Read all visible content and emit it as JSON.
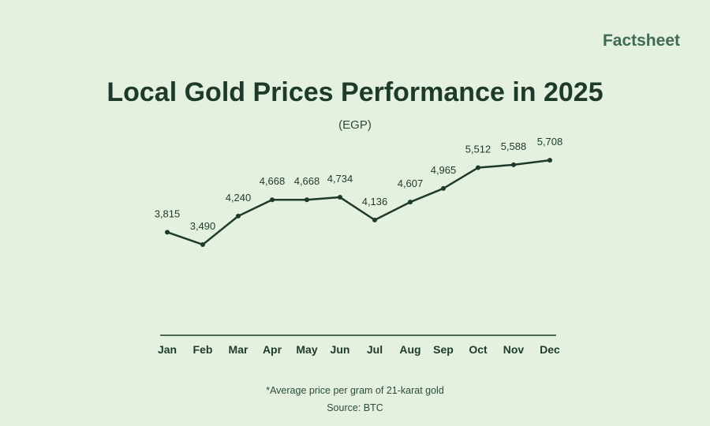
{
  "brand": "Factsheet",
  "chart_data": {
    "type": "line",
    "title": "Local Gold Prices Performance in 2025",
    "subtitle": "(EGP)",
    "categories": [
      "Jan",
      "Feb",
      "Mar",
      "Apr",
      "May",
      "Jun",
      "Jul",
      "Aug",
      "Sep",
      "Oct",
      "Nov",
      "Dec"
    ],
    "values": [
      3815,
      3490,
      4240,
      4668,
      4668,
      4734,
      4136,
      4607,
      4965,
      5512,
      5588,
      5708
    ],
    "labels": [
      "3,815",
      "3,490",
      "4,240",
      "4,668",
      "4,668",
      "4,734",
      "4,136",
      "4,607",
      "4,965",
      "5,512",
      "5,588",
      "5,708"
    ],
    "xlabel": "",
    "ylabel": "",
    "ylim": [
      1500,
      6000
    ],
    "grid": false,
    "line_color": "#1d3a2b"
  },
  "footnote": "*Average price per gram of 21-karat gold",
  "source": "Source: BTC"
}
